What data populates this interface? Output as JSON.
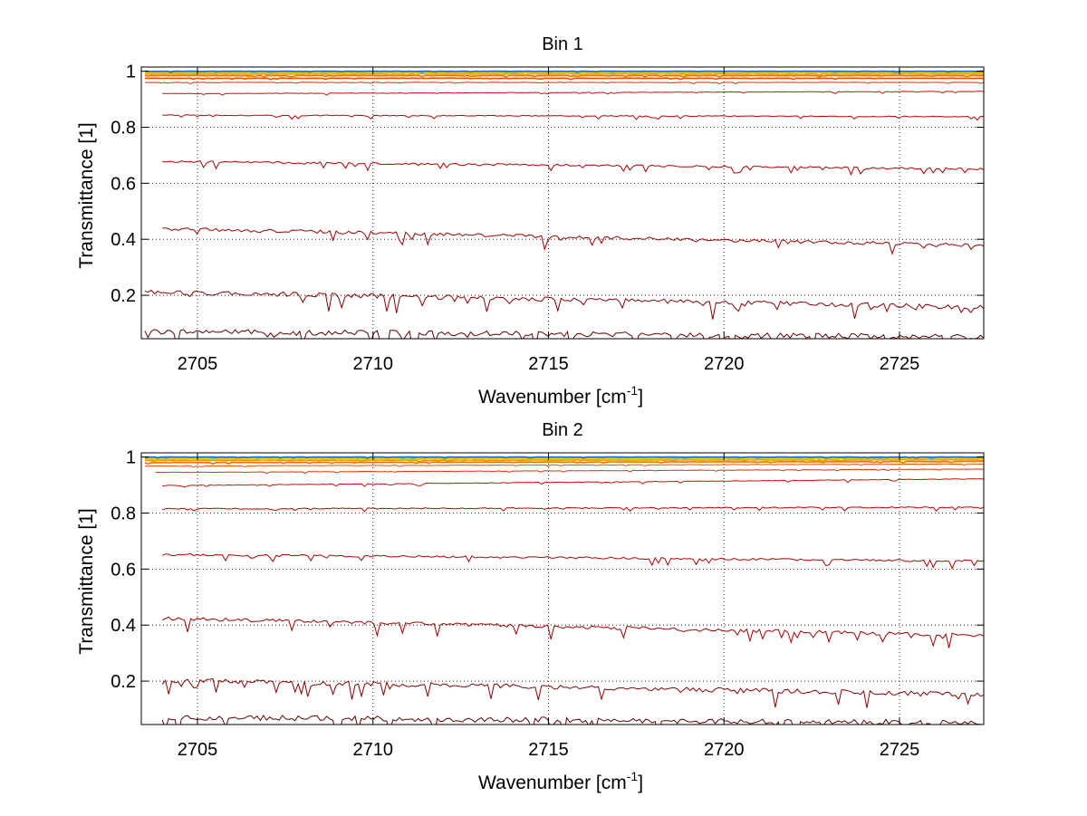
{
  "chart_data": [
    {
      "type": "line",
      "title": "Bin 1",
      "xlabel": "Wavenumber [cm",
      "xlabel_sup": "-1",
      "xlabel_end": "]",
      "ylabel": "Transmittance [1]",
      "xlim": [
        2703.4,
        2727.4
      ],
      "ylim": [
        0.045,
        1.015
      ],
      "xticks": [
        2705,
        2710,
        2715,
        2720,
        2725
      ],
      "yticks": [
        0.2,
        0.4,
        0.6,
        0.8,
        1
      ],
      "ytick_labels": [
        "0.2",
        "0.4",
        "0.6",
        "0.8",
        "1"
      ],
      "xtick_labels": [
        "2705",
        "2710",
        "2715",
        "2720",
        "2725"
      ],
      "grid": true,
      "series": [
        {
          "color": "#600000",
          "x": [
            2703.5,
            2727.4
          ],
          "y": [
            0.071,
            0.051
          ]
        },
        {
          "color": "#8a0000",
          "x": [
            2703.5,
            2727.4
          ],
          "y": [
            0.213,
            0.158
          ]
        },
        {
          "color": "#a00000",
          "x": [
            2704.0,
            2727.4
          ],
          "y": [
            0.438,
            0.378
          ]
        },
        {
          "color": "#b40000",
          "x": [
            2704.0,
            2727.4
          ],
          "y": [
            0.678,
            0.651
          ]
        },
        {
          "color": "#c00000",
          "x": [
            2704.0,
            2727.4
          ],
          "y": [
            0.843,
            0.838
          ]
        },
        {
          "color": "#d01000",
          "x": [
            2704.0,
            2727.4
          ],
          "y": [
            0.92,
            0.928
          ]
        },
        {
          "color": "#e03000",
          "x": [
            2703.5,
            2727.4
          ],
          "y": [
            0.96,
            0.96
          ]
        },
        {
          "color": "#e85000",
          "x": [
            2703.5,
            2727.4
          ],
          "y": [
            0.975,
            0.975
          ]
        },
        {
          "color": "#f07000",
          "x": [
            2703.5,
            2727.4
          ],
          "y": [
            0.984,
            0.984
          ]
        },
        {
          "color": "#f89000",
          "x": [
            2703.5,
            2727.4
          ],
          "y": [
            0.99,
            0.99
          ]
        },
        {
          "color": "#ffb000",
          "x": [
            2703.5,
            2727.4
          ],
          "y": [
            0.994,
            0.994
          ]
        },
        {
          "color": "#ffd000",
          "x": [
            2703.5,
            2727.4
          ],
          "y": [
            0.996,
            0.996
          ]
        },
        {
          "color": "#e0e000",
          "x": [
            2703.5,
            2727.4
          ],
          "y": [
            0.997,
            0.997
          ]
        },
        {
          "color": "#a0e040",
          "x": [
            2703.5,
            2727.4
          ],
          "y": [
            0.998,
            0.998
          ]
        },
        {
          "color": "#40c0c0",
          "x": [
            2703.5,
            2727.4
          ],
          "y": [
            0.999,
            0.999
          ]
        },
        {
          "color": "#2070d0",
          "x": [
            2703.5,
            2727.4
          ],
          "y": [
            1.0,
            1.0
          ]
        }
      ]
    },
    {
      "type": "line",
      "title": "Bin 2",
      "xlabel": "Wavenumber [cm",
      "xlabel_sup": "-1",
      "xlabel_end": "]",
      "ylabel": "Transmittance [1]",
      "xlim": [
        2703.4,
        2727.4
      ],
      "ylim": [
        0.045,
        1.015
      ],
      "xticks": [
        2705,
        2710,
        2715,
        2720,
        2725
      ],
      "yticks": [
        0.2,
        0.4,
        0.6,
        0.8,
        1
      ],
      "ytick_labels": [
        "0.2",
        "0.4",
        "0.6",
        "0.8",
        "1"
      ],
      "xtick_labels": [
        "2705",
        "2710",
        "2715",
        "2720",
        "2725"
      ],
      "grid": true,
      "series": [
        {
          "color": "#600000",
          "x": [
            2704.0,
            2727.4
          ],
          "y": [
            0.071,
            0.051
          ]
        },
        {
          "color": "#8a0000",
          "x": [
            2704.0,
            2727.4
          ],
          "y": [
            0.203,
            0.152
          ]
        },
        {
          "color": "#a00000",
          "x": [
            2704.0,
            2727.4
          ],
          "y": [
            0.424,
            0.363
          ]
        },
        {
          "color": "#b40000",
          "x": [
            2704.0,
            2727.4
          ],
          "y": [
            0.652,
            0.629
          ]
        },
        {
          "color": "#c00000",
          "x": [
            2704.0,
            2727.4
          ],
          "y": [
            0.815,
            0.821
          ]
        },
        {
          "color": "#d01000",
          "x": [
            2704.0,
            2727.4
          ],
          "y": [
            0.898,
            0.922
          ]
        },
        {
          "color": "#e03000",
          "x": [
            2703.8,
            2727.4
          ],
          "y": [
            0.945,
            0.957
          ]
        },
        {
          "color": "#e85000",
          "x": [
            2703.5,
            2727.4
          ],
          "y": [
            0.968,
            0.975
          ]
        },
        {
          "color": "#f07000",
          "x": [
            2703.5,
            2727.4
          ],
          "y": [
            0.98,
            0.984
          ]
        },
        {
          "color": "#f89000",
          "x": [
            2703.5,
            2727.4
          ],
          "y": [
            0.988,
            0.99
          ]
        },
        {
          "color": "#ffb000",
          "x": [
            2703.5,
            2727.4
          ],
          "y": [
            0.992,
            0.994
          ]
        },
        {
          "color": "#ffd000",
          "x": [
            2703.5,
            2727.4
          ],
          "y": [
            0.995,
            0.996
          ]
        },
        {
          "color": "#e0e000",
          "x": [
            2703.5,
            2727.4
          ],
          "y": [
            0.997,
            0.997
          ]
        },
        {
          "color": "#a0e040",
          "x": [
            2703.5,
            2727.4
          ],
          "y": [
            0.998,
            0.998
          ]
        },
        {
          "color": "#40c0c0",
          "x": [
            2703.5,
            2727.4
          ],
          "y": [
            0.999,
            0.999
          ]
        },
        {
          "color": "#2070d0",
          "x": [
            2703.5,
            2727.4
          ],
          "y": [
            1.0,
            1.0
          ]
        }
      ]
    }
  ]
}
